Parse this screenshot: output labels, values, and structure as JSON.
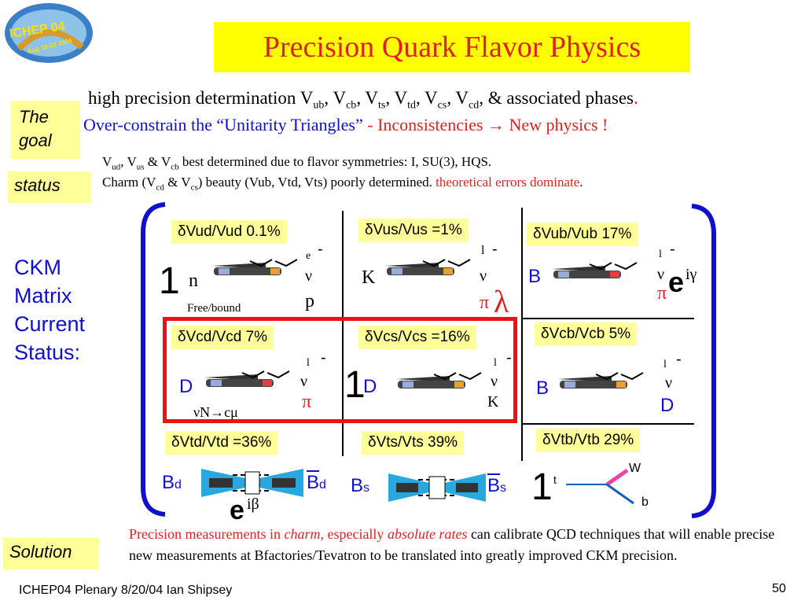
{
  "conference_logo": {
    "text": "ICHEP 04",
    "subtext": "Aug 16-22 2004"
  },
  "title": "Precision Quark Flavor Physics",
  "goal_tag": "The goal",
  "goal_line1": {
    "pre": "high precision determination V",
    "items": [
      [
        "ub",
        ", V"
      ],
      [
        "cb",
        ", V"
      ],
      [
        "ts",
        ", V"
      ],
      [
        "td",
        ", V"
      ],
      [
        "cs",
        ", V"
      ],
      [
        "cd",
        ", & associated phases"
      ]
    ],
    "end": "."
  },
  "goal_line2": {
    "blue": "Over-constrain the  “Unitarity Triangles”",
    "red": " - Inconsistencies → New physics !"
  },
  "status_tag": "status",
  "status_line1": {
    "a": "V",
    "a_sub": "ud",
    "b": ", V",
    "b_sub": "us",
    "c": " & V",
    "c_sub": "cb",
    "d": " best determined due to flavor symmetries: I, SU(3), HQS."
  },
  "status_line2": {
    "a": "Charm (V",
    "a_sub": "cd",
    "b": " & V",
    "b_sub": "cs",
    "c": ")  beauty (Vub, Vtd, Vts) poorly determined. ",
    "red": "theoretical errors dominate",
    "end": "."
  },
  "ckm_label": [
    "CKM",
    "Matrix",
    "Current",
    "Status:"
  ],
  "cells": {
    "vud": "δVud/Vud 0.1%",
    "vus": "δVus/Vus =1%",
    "vub": "δVub/Vub 17%",
    "vcd": "δVcd/Vcd 7%",
    "vcs": "δVcs/Vcs =16%",
    "vcb": "δVcb/Vcb 5%",
    "vtd": "δVtd/Vtd =36%",
    "vts": "δVts/Vts 39%",
    "vtb": "δVtb/Vtb 29%"
  },
  "diagram": {
    "one": "1",
    "n": "n",
    "free_bound": "Free/bound",
    "e": "e",
    "nu": "ν",
    "p": "p",
    "dash": "-",
    "K": "K",
    "l": "l",
    "pi": "π",
    "lambda": "λ",
    "B": "B",
    "e_big": "e",
    "igamma": "iγ",
    "D": "D",
    "nuN": "νN→cμ",
    "Bd": "B",
    "d": "d",
    "Bs": "B",
    "s": "s",
    "ibeta": "iβ",
    "t": "t",
    "W": "W",
    "b": "b"
  },
  "solution_tag": "Solution",
  "solution_text": {
    "r1": "Precision measurements in ",
    "r_charm": "charm",
    "r2": ", especially  ",
    "r_abs": "absolute rates",
    "black": " can calibrate QCD techniques that will enable precise new measurements at Bfactories/Tevatron to be translated into greatly improved CKM precision."
  },
  "footer": {
    "left": "ICHEP04 Plenary 8/20/04 Ian Shipsey",
    "page": "50"
  },
  "colors": {
    "title_bg": "#ffff00",
    "tag_bg": "#ffff99",
    "red": "#e02020",
    "blue": "#1010cc",
    "frame_red": "#ee1111"
  }
}
